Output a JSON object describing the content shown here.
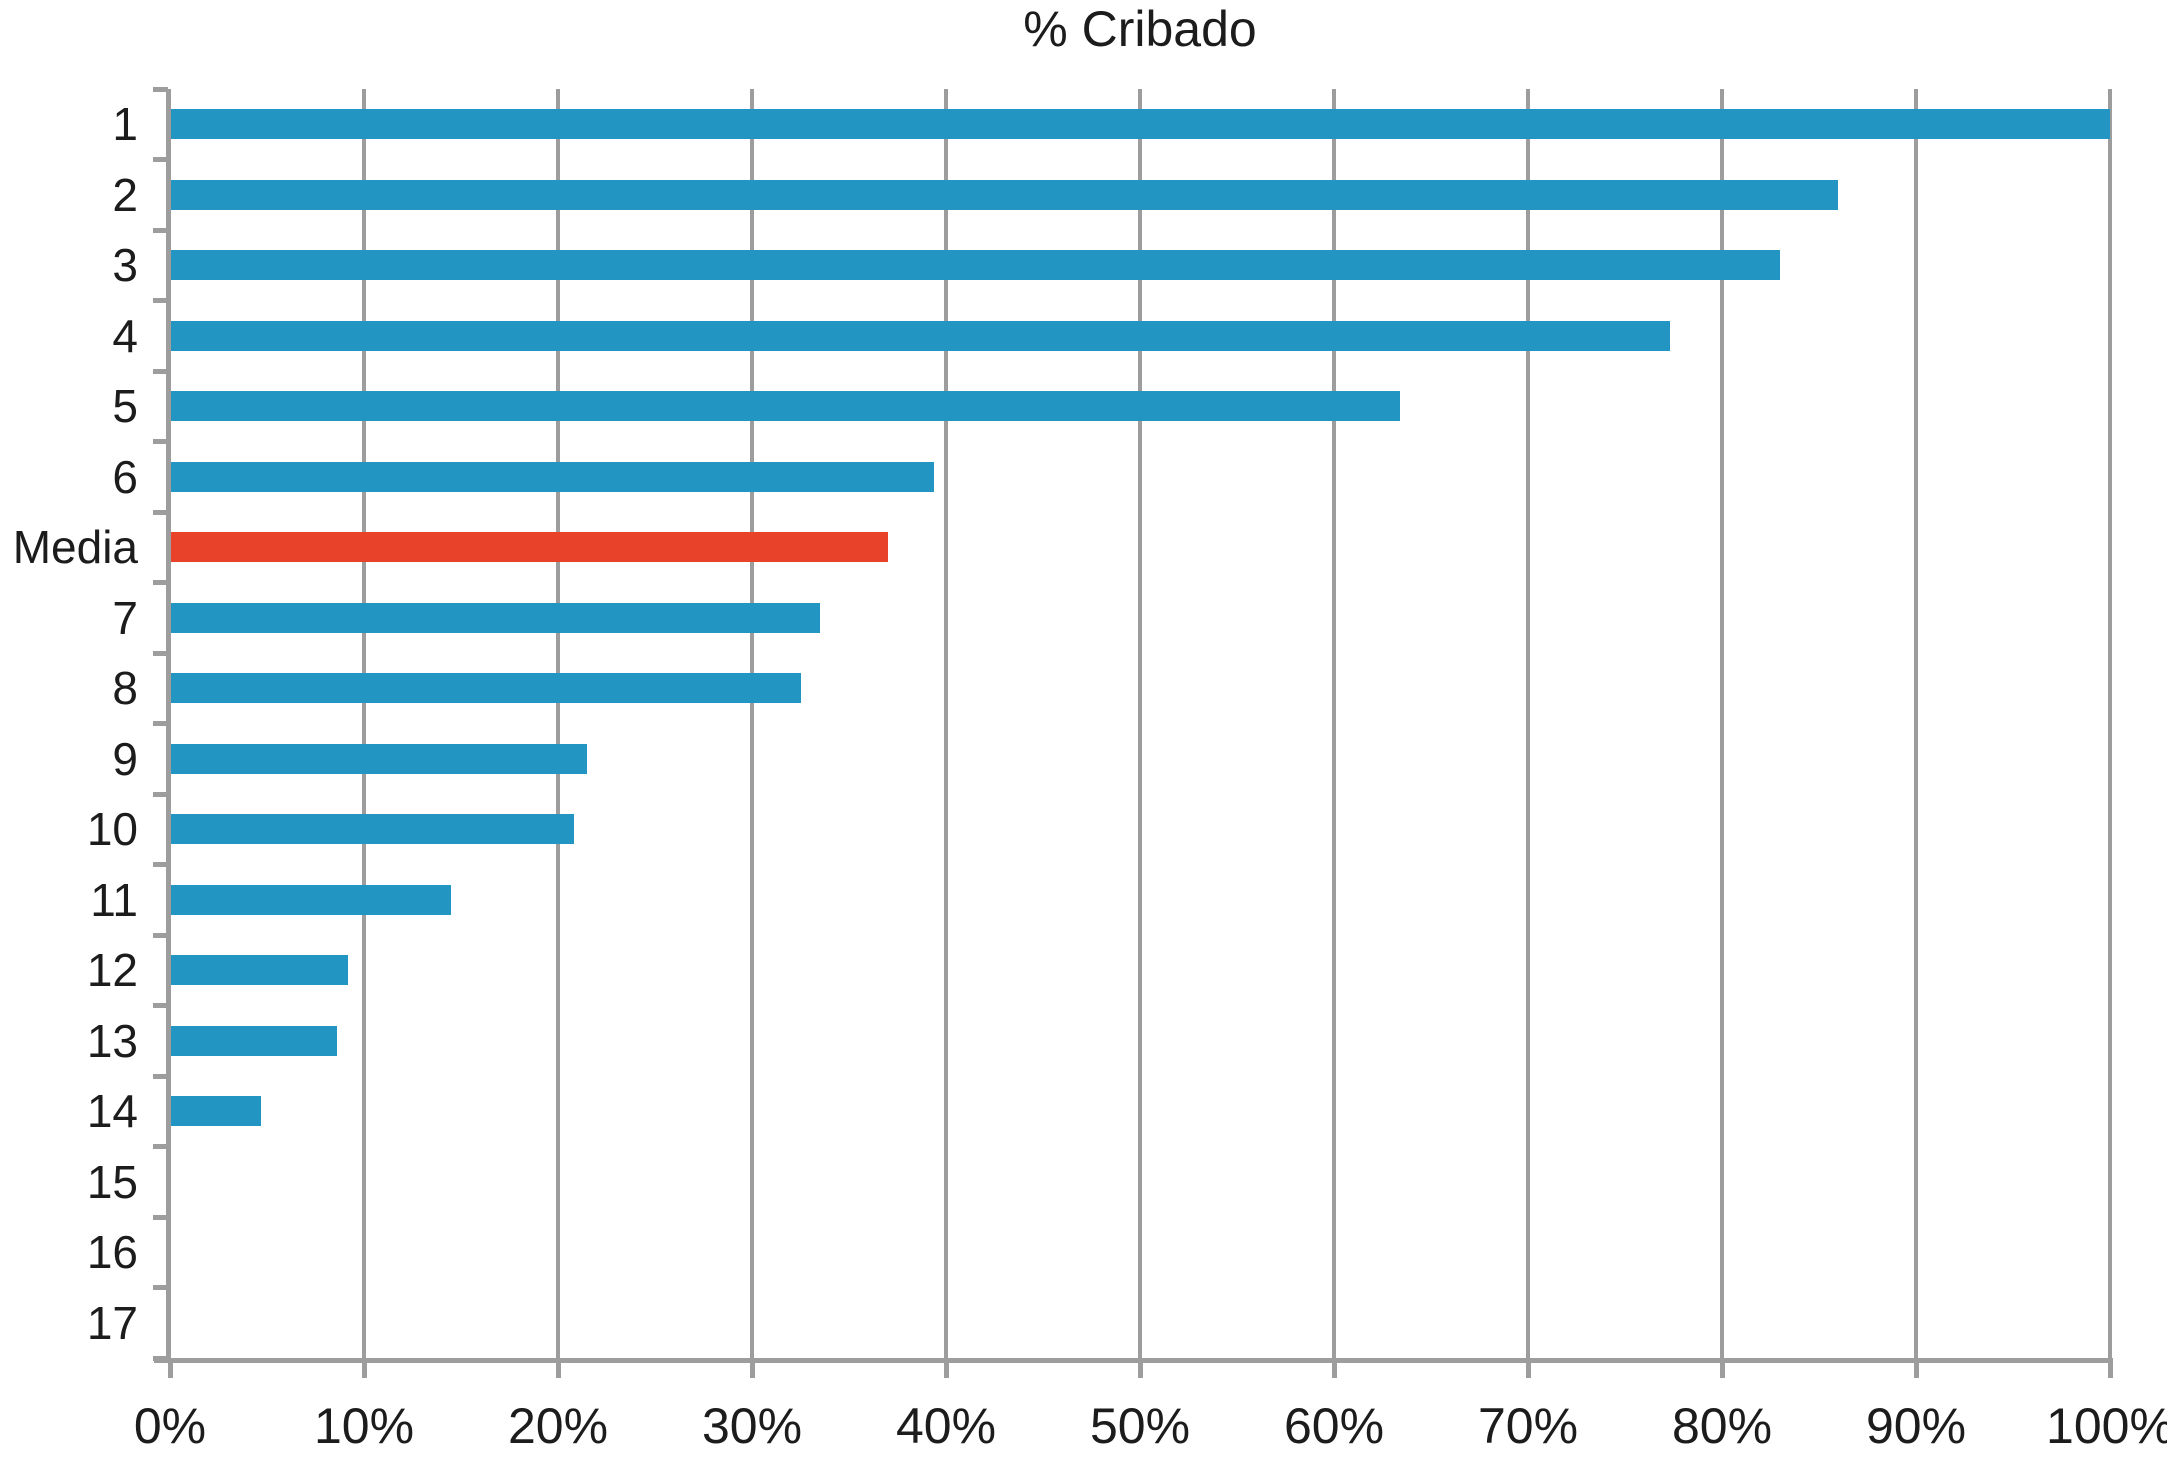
{
  "chart_data": {
    "type": "bar",
    "orientation": "horizontal",
    "title": "% Cribado",
    "categories": [
      "1",
      "2",
      "3",
      "4",
      "5",
      "6",
      "Media",
      "7",
      "8",
      "9",
      "10",
      "11",
      "12",
      "13",
      "14",
      "15",
      "16",
      "17"
    ],
    "values": [
      100,
      86,
      83,
      77.3,
      63.4,
      39.4,
      37,
      33.5,
      32.5,
      21.5,
      20.8,
      14.5,
      9.2,
      8.6,
      4.7,
      0,
      0,
      0
    ],
    "highlight_category": "Media",
    "bar_color": "#2295c3",
    "highlight_color": "#e8432a",
    "x_ticks": [
      "0%",
      "10%",
      "20%",
      "30%",
      "40%",
      "50%",
      "60%",
      "70%",
      "80%",
      "90%",
      "100%"
    ],
    "xlim": [
      0,
      100
    ],
    "grid": "vertical-only",
    "legend": "none",
    "axis_color": "#9d9d9d",
    "text_color": "#1c1c1c"
  }
}
